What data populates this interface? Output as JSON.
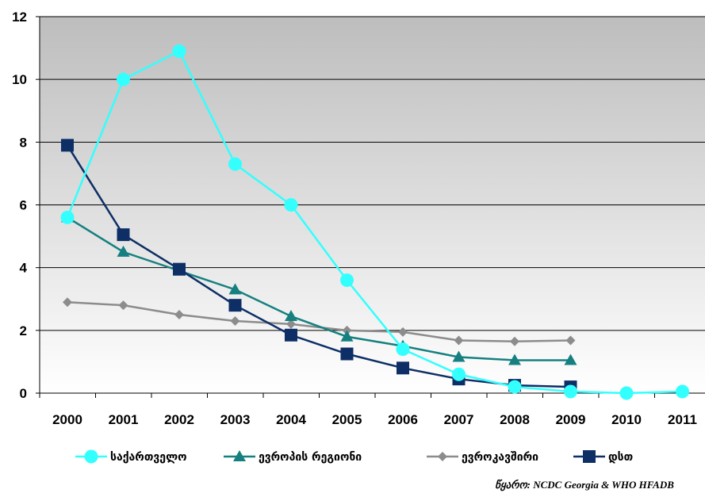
{
  "chart_data": {
    "type": "line",
    "title": "",
    "xlabel": "",
    "ylabel": "",
    "categories": [
      "2000",
      "2001",
      "2002",
      "2003",
      "2004",
      "2005",
      "2006",
      "2007",
      "2008",
      "2009",
      "2010",
      "2011"
    ],
    "ylim": [
      0,
      12
    ],
    "yticks": [
      0,
      2,
      4,
      6,
      8,
      10,
      12
    ],
    "grid": "horizontal",
    "legend_position": "bottom",
    "series": [
      {
        "name": "საქართველო",
        "color": "#33ffff",
        "marker": "circle",
        "values": [
          5.6,
          10.0,
          10.9,
          7.3,
          6.0,
          3.6,
          1.4,
          0.6,
          0.2,
          0.05,
          0.0,
          0.05
        ]
      },
      {
        "name": "ევროპის რეგიონი",
        "color": "#168080",
        "marker": "triangle",
        "values": [
          5.6,
          4.5,
          3.9,
          3.3,
          2.45,
          1.8,
          1.5,
          1.15,
          1.05,
          1.05,
          null,
          null
        ]
      },
      {
        "name": "ევროკავშირი",
        "color": "#8c8c8c",
        "marker": "diamond",
        "values": [
          2.9,
          2.8,
          2.5,
          2.3,
          2.2,
          2.0,
          1.95,
          1.68,
          1.65,
          1.68,
          null,
          null
        ]
      },
      {
        "name": "დსთ",
        "color": "#0d2f66",
        "marker": "square",
        "values": [
          7.9,
          5.05,
          3.95,
          2.8,
          1.85,
          1.25,
          0.8,
          0.45,
          0.25,
          0.2,
          null,
          null
        ]
      }
    ]
  },
  "source": "წყარო: NCDC Georgia & WHO HFADB"
}
